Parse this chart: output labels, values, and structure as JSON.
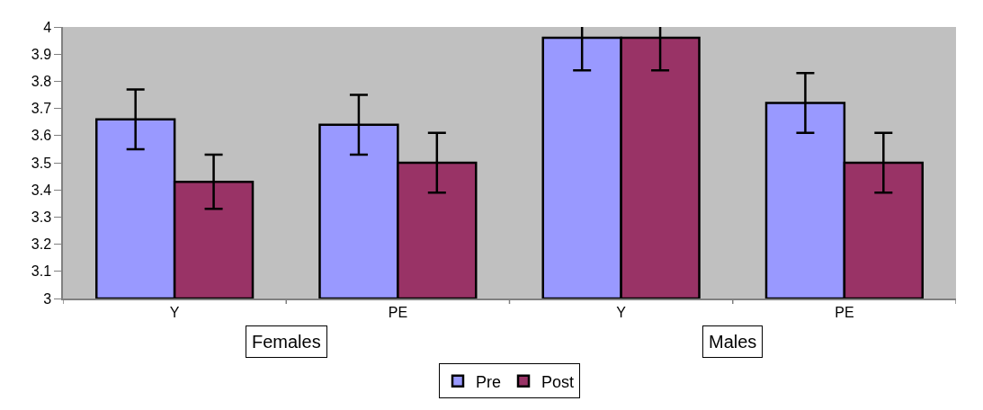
{
  "chart_data": {
    "type": "bar",
    "categories": [
      "Y",
      "PE",
      "Y",
      "PE"
    ],
    "series": [
      {
        "name": "Pre",
        "color": "#9999ff",
        "values": [
          3.66,
          3.64,
          3.96,
          3.72
        ],
        "errors": [
          0.11,
          0.11,
          0.12,
          0.11
        ]
      },
      {
        "name": "Post",
        "color": "#993366",
        "values": [
          3.43,
          3.5,
          3.96,
          3.5
        ],
        "errors": [
          0.1,
          0.11,
          0.12,
          0.11
        ]
      }
    ],
    "ylim": [
      3,
      4
    ],
    "yticks": [
      3,
      3.1,
      3.2,
      3.3,
      3.4,
      3.5,
      3.6,
      3.7,
      3.8,
      3.9,
      4
    ],
    "annotations": [
      "Females",
      "Males"
    ],
    "grid": false,
    "legend": "bottom"
  }
}
